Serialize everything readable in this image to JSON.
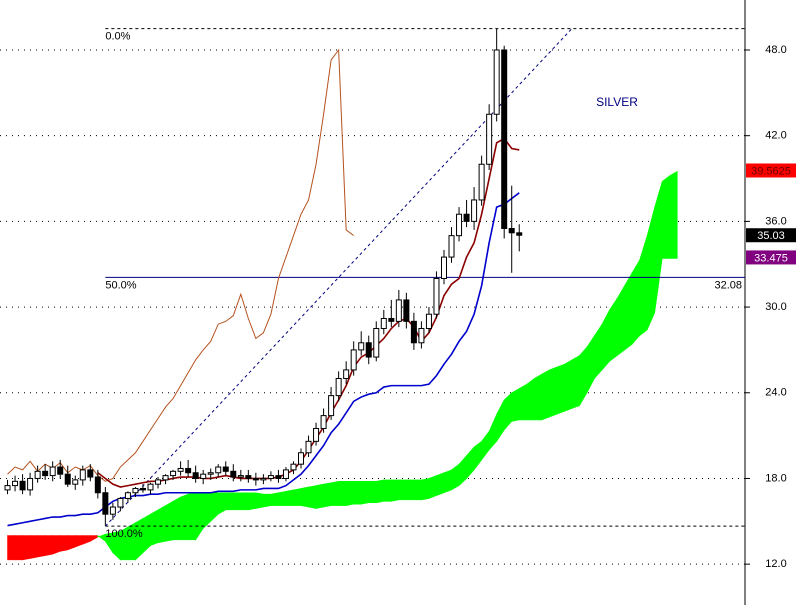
{
  "chart_data": {
    "type": "candlestick",
    "title": "SILVER",
    "xlim": [
      -1,
      98
    ],
    "ylim": [
      9.14,
      51.5
    ],
    "yticks": [
      {
        "value": 12,
        "label": "12.0"
      },
      {
        "value": 18,
        "label": "18.0"
      },
      {
        "value": 24,
        "label": "24.0"
      },
      {
        "value": 30,
        "label": "30.0"
      },
      {
        "value": 36,
        "label": "36.0"
      },
      {
        "value": 42,
        "label": "42.0"
      },
      {
        "value": 48,
        "label": "48.0"
      }
    ],
    "grid": true,
    "open": [
      17.2,
      17.5,
      17.8,
      17.2,
      18.0,
      18.5,
      18.2,
      18.8,
      18.3,
      17.6,
      17.9,
      18.6,
      18.1,
      17.0,
      15.5,
      16.0,
      16.6,
      17.0,
      17.3,
      17.2,
      17.6,
      17.9,
      18.2,
      18.5,
      18.7,
      18.4,
      18.0,
      18.3,
      18.4,
      18.8,
      18.5,
      18.1,
      18.2,
      18.0,
      17.9,
      18.0,
      18.2,
      18.0,
      18.6,
      19.0,
      19.8,
      20.6,
      21.5,
      22.4,
      23.8,
      25.0,
      25.6,
      27.0,
      27.5,
      26.5,
      28.5,
      29.2,
      29.0,
      30.5,
      29.0,
      27.5,
      28.5,
      29.5,
      32.0,
      33.5,
      35.0,
      36.5,
      36.0,
      37.5,
      40.0,
      43.5,
      48.0,
      35.5,
      35.2
    ],
    "high": [
      17.9,
      18.2,
      18.3,
      18.4,
      18.9,
      19.0,
      19.2,
      19.3,
      18.9,
      18.2,
      18.9,
      19.0,
      18.6,
      17.4,
      16.3,
      16.7,
      17.1,
      17.4,
      17.6,
      17.7,
      18.1,
      18.3,
      18.6,
      19.2,
      19.3,
      18.9,
      18.6,
      18.7,
      19.0,
      19.2,
      19.0,
      18.6,
      18.6,
      18.4,
      18.3,
      18.5,
      18.6,
      18.8,
      19.2,
      20.1,
      21.0,
      21.9,
      22.9,
      24.4,
      25.5,
      26.2,
      27.6,
      28.3,
      28.0,
      29.0,
      29.8,
      30.5,
      31.2,
      31.0,
      29.6,
      29.0,
      30.0,
      32.5,
      34.0,
      35.6,
      37.0,
      37.5,
      38.4,
      40.6,
      44.2,
      49.5,
      48.3,
      38.5,
      35.8
    ],
    "low": [
      16.9,
      17.1,
      16.9,
      16.8,
      17.7,
      17.9,
      17.8,
      18.0,
      17.4,
      17.2,
      17.5,
      17.8,
      16.6,
      14.7,
      15.1,
      15.7,
      16.3,
      16.7,
      17.0,
      16.9,
      17.3,
      17.6,
      17.9,
      18.2,
      18.1,
      17.7,
      17.6,
      17.9,
      18.1,
      18.2,
      17.8,
      17.8,
      17.7,
      17.5,
      17.6,
      17.8,
      17.7,
      17.8,
      18.3,
      18.7,
      19.5,
      20.3,
      21.2,
      22.1,
      23.4,
      24.6,
      25.2,
      26.6,
      26.0,
      26.2,
      28.1,
      28.6,
      28.6,
      28.5,
      27.0,
      27.1,
      28.2,
      29.2,
      31.6,
      33.1,
      34.6,
      35.6,
      35.4,
      37.1,
      39.6,
      43.0,
      34.8,
      32.4,
      33.9
    ],
    "close": [
      17.5,
      17.8,
      17.2,
      18.0,
      18.5,
      18.2,
      18.8,
      18.3,
      17.6,
      17.9,
      18.6,
      18.1,
      17.0,
      15.5,
      16.0,
      16.6,
      17.0,
      17.3,
      17.2,
      17.6,
      17.9,
      18.2,
      18.5,
      18.7,
      18.4,
      18.0,
      18.3,
      18.4,
      18.8,
      18.5,
      18.1,
      18.2,
      18.0,
      17.9,
      18.0,
      18.2,
      18.0,
      18.6,
      19.0,
      19.8,
      20.6,
      21.5,
      22.4,
      23.8,
      25.0,
      25.6,
      27.0,
      27.5,
      26.5,
      28.5,
      29.2,
      29.0,
      30.5,
      29.0,
      27.5,
      28.5,
      29.5,
      32.0,
      33.5,
      35.0,
      36.5,
      36.0,
      37.5,
      40.0,
      43.5,
      48.0,
      35.5,
      35.2,
      35.03
    ],
    "lines": [
      {
        "color": "#b5521f",
        "values": [
          18.3,
          18.8,
          18.6,
          19.2,
          18.5,
          19.0,
          18.7,
          19.1,
          18.4,
          18.8,
          18.6,
          18.9,
          18.2,
          17.8,
          18.0,
          18.8,
          19.3,
          19.8,
          20.6,
          21.4,
          22.2,
          23.0,
          23.6,
          24.5,
          25.4,
          26.3,
          27.0,
          27.6,
          28.8,
          29.0,
          29.4,
          30.9,
          29.2,
          27.8,
          28.2,
          29.5,
          32.0,
          33.5,
          35.0,
          36.5,
          37.5,
          40.0,
          43.5,
          47.3,
          48.0,
          35.4,
          35.0
        ]
      },
      {
        "color": "#0000cc",
        "values": [
          14.7,
          14.8,
          14.9,
          15.0,
          15.1,
          15.2,
          15.3,
          15.3,
          15.4,
          15.4,
          15.5,
          15.5,
          15.6,
          16.0,
          16.4,
          16.6,
          16.7,
          16.8,
          16.8,
          16.9,
          16.9,
          17.0,
          17.0,
          17.0,
          17.0,
          17.0,
          17.0,
          17.0,
          17.1,
          17.1,
          17.1,
          17.2,
          17.2,
          17.2,
          17.3,
          17.3,
          17.3,
          17.5,
          17.9,
          18.3,
          18.9,
          19.6,
          20.3,
          21.2,
          21.8,
          22.6,
          23.4,
          23.7,
          23.9,
          24.0,
          24.4,
          24.5,
          24.5,
          24.5,
          24.5,
          24.5,
          24.6,
          25.2,
          26.0,
          26.7,
          27.6,
          28.3,
          29.5,
          31.5,
          34.5,
          37.0,
          37.2,
          37.6,
          38.0
        ]
      },
      {
        "color": "#8b0000",
        "values": [
          null,
          null,
          null,
          null,
          null,
          null,
          null,
          null,
          null,
          null,
          null,
          null,
          18.4,
          18.0,
          17.6,
          17.4,
          17.5,
          17.6,
          17.7,
          17.8,
          17.8,
          17.9,
          18.0,
          18.1,
          18.1,
          18.1,
          18.0,
          18.0,
          18.1,
          18.2,
          18.1,
          18.0,
          18.0,
          18.0,
          18.0,
          18.0,
          18.1,
          18.3,
          18.6,
          19.2,
          20.0,
          20.8,
          21.6,
          22.6,
          23.5,
          24.5,
          25.8,
          26.5,
          26.8,
          27.3,
          27.8,
          28.5,
          29.0,
          29.2,
          28.6,
          27.6,
          28.2,
          29.3,
          30.8,
          31.6,
          32.0,
          33.5,
          34.5,
          36.5,
          39.0,
          41.5,
          41.8,
          41.1,
          41.0
        ]
      }
    ],
    "cloud": {
      "up_color": "#00ff00",
      "down_color": "#ff0000",
      "span_a": [
        12.3,
        12.3,
        12.3,
        12.4,
        12.5,
        12.6,
        12.7,
        12.9,
        13.0,
        13.2,
        13.4,
        13.6,
        13.9,
        14.1,
        14.2,
        14.3,
        14.6,
        14.9,
        15.2,
        15.5,
        15.8,
        16.1,
        16.4,
        16.7,
        16.9,
        17.0,
        17.0,
        17.0,
        17.0,
        17.0,
        17.0,
        17.0,
        17.0,
        17.0,
        16.9,
        16.9,
        17.0,
        17.1,
        17.2,
        17.3,
        17.4,
        17.5,
        17.6,
        17.7,
        17.8,
        17.8,
        17.8,
        17.8,
        17.8,
        17.8,
        17.9,
        17.9,
        17.9,
        17.9,
        17.9,
        17.9,
        18.0,
        18.2,
        18.4,
        18.6,
        19.0,
        19.6,
        20.2,
        20.6,
        21.3,
        22.5,
        23.5,
        24.0,
        24.3,
        24.6,
        25.0,
        25.3,
        25.6,
        25.8,
        26.0,
        26.3,
        26.6,
        27.2,
        28.0,
        28.8,
        29.8,
        30.6,
        31.5,
        32.4,
        33.3,
        35.0,
        37.0,
        38.8,
        39.2,
        39.5
      ],
      "span_b": [
        14.0,
        14.0,
        14.0,
        14.0,
        14.0,
        14.0,
        14.0,
        14.0,
        14.0,
        14.0,
        14.0,
        14.0,
        14.0,
        13.6,
        12.8,
        12.3,
        12.3,
        12.3,
        12.8,
        13.3,
        13.5,
        13.6,
        13.7,
        13.7,
        13.7,
        13.7,
        14.5,
        15.0,
        15.5,
        15.8,
        15.8,
        15.8,
        15.8,
        15.9,
        16.0,
        16.1,
        16.1,
        16.1,
        16.1,
        16.1,
        16.0,
        15.9,
        16.0,
        16.1,
        16.1,
        16.1,
        16.2,
        16.2,
        16.3,
        16.3,
        16.4,
        16.4,
        16.5,
        16.5,
        16.5,
        16.5,
        16.6,
        16.8,
        17.0,
        17.2,
        17.5,
        18.0,
        18.6,
        19.3,
        20.0,
        20.6,
        21.4,
        22.0,
        22.1,
        22.1,
        22.1,
        22.1,
        22.3,
        22.5,
        22.7,
        22.9,
        23.1,
        24.0,
        25.0,
        25.6,
        26.2,
        26.6,
        27.0,
        27.4,
        28.0,
        28.4,
        29.6,
        33.4,
        33.4,
        33.4
      ]
    },
    "fibonacci": {
      "color": "#000080",
      "x_start": 13,
      "x_end": 75,
      "levels": [
        {
          "value": 49.5,
          "label": "0.0%"
        },
        {
          "value": 32.08,
          "label": "50.0%"
        },
        {
          "value": 14.66,
          "label": "100.0%"
        }
      ]
    },
    "price_markers": [
      {
        "value": 39.5625,
        "color": "#ff0000"
      },
      {
        "value": 35.03,
        "color": "#000000"
      },
      {
        "value": 33.475,
        "color": "#800080"
      }
    ]
  }
}
